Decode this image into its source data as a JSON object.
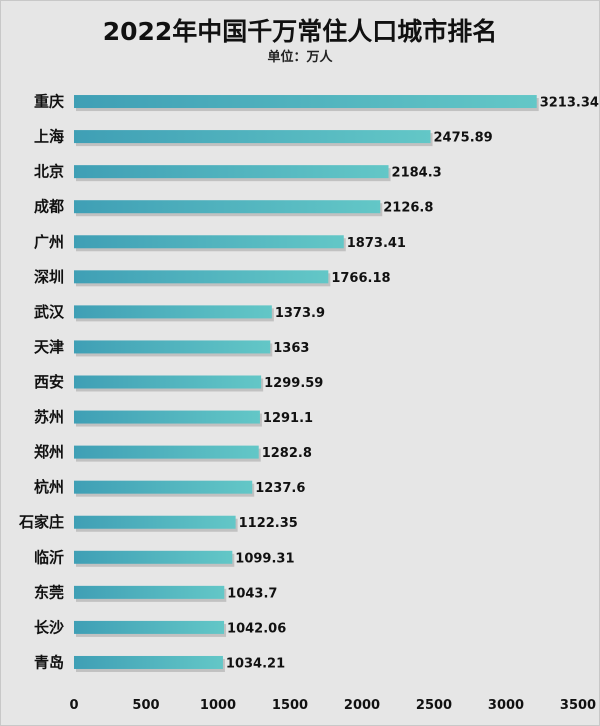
{
  "chart_data": {
    "type": "bar",
    "orientation": "horizontal",
    "title": "2022年中国千万常住人口城市排名",
    "subtitle": "单位：万人",
    "categories": [
      "重庆",
      "上海",
      "北京",
      "成都",
      "广州",
      "深圳",
      "武汉",
      "天津",
      "西安",
      "苏州",
      "郑州",
      "杭州",
      "石家庄",
      "临沂",
      "东莞",
      "长沙",
      "青岛"
    ],
    "values": [
      3213.34,
      2475.89,
      2184.3,
      2126.8,
      1873.41,
      1766.18,
      1373.9,
      1363,
      1299.59,
      1291.1,
      1282.8,
      1237.6,
      1122.35,
      1099.31,
      1043.7,
      1042.06,
      1034.21
    ],
    "value_labels": [
      "3213.34",
      "2475.89",
      "2184.3",
      "2126.8",
      "1873.41",
      "1766.18",
      "1373.9",
      "1363",
      "1299.59",
      "1291.1",
      "1282.8",
      "1237.6",
      "1122.35",
      "1099.31",
      "1043.7",
      "1042.06",
      "1034.21"
    ],
    "xlim": [
      0,
      3500
    ],
    "xticks": [
      0,
      500,
      1000,
      1500,
      2000,
      2500,
      3000,
      3500
    ],
    "xlabel": "",
    "ylabel": "",
    "grid": false,
    "legend": "none",
    "colors": {
      "bar_start": "#3f9fb5",
      "bar_end": "#63c7c7",
      "shadow": "#b0b0b0"
    }
  }
}
